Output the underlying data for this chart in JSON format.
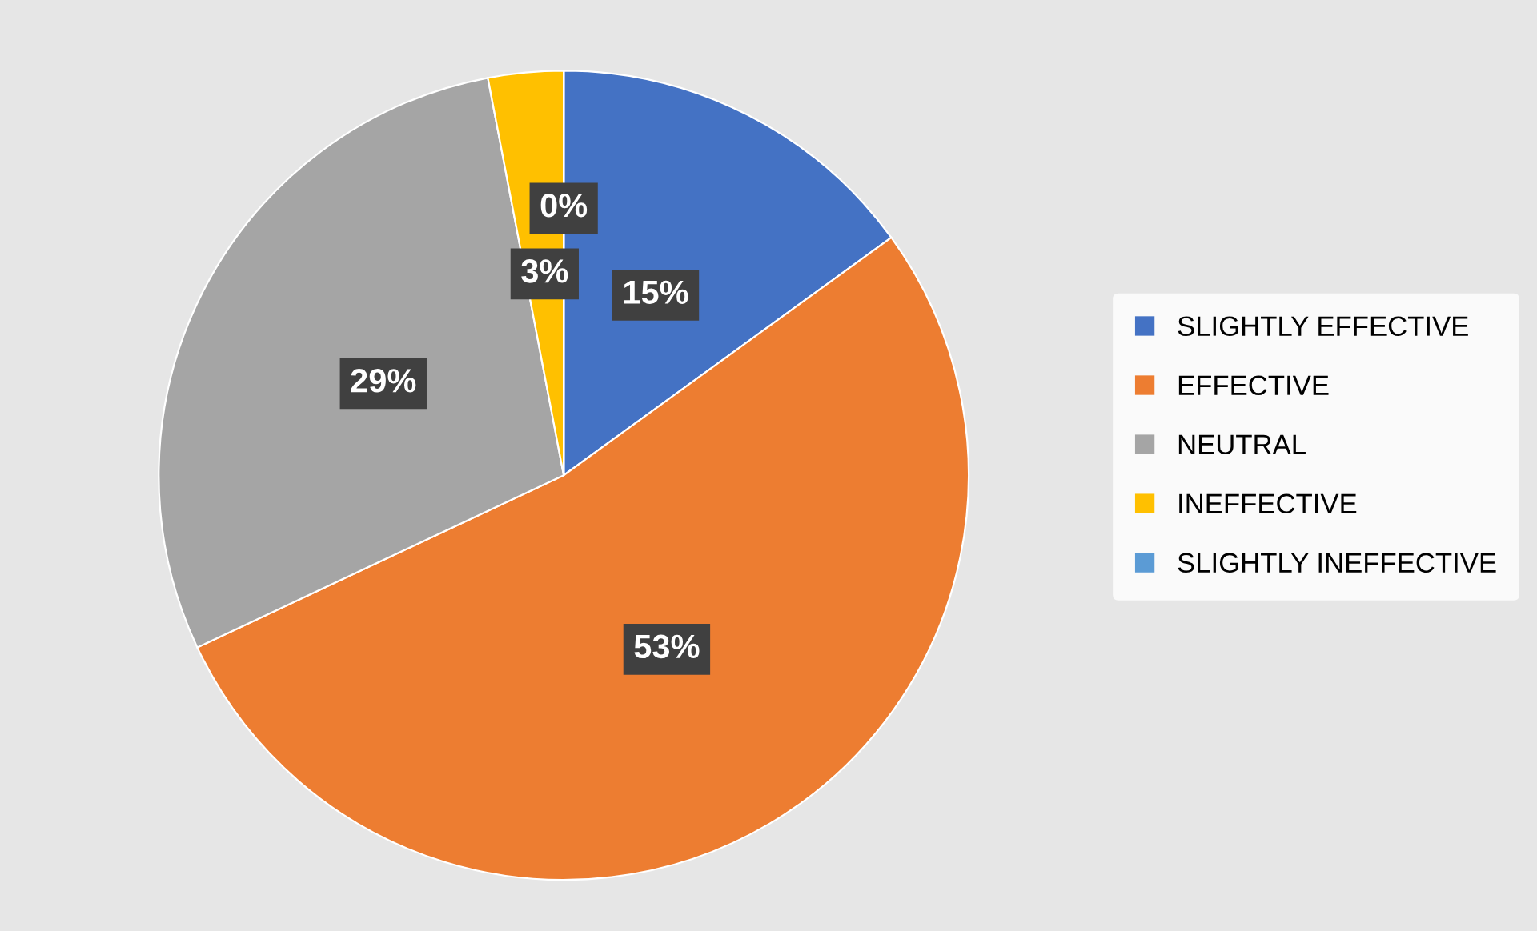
{
  "chart_data": {
    "type": "pie",
    "categories": [
      "SLIGHTLY EFFECTIVE",
      "EFFECTIVE",
      "NEUTRAL",
      "INEFFECTIVE",
      "SLIGHTLY INEFFECTIVE"
    ],
    "values": [
      15,
      53,
      29,
      3,
      0
    ],
    "colors": [
      "#4472c4",
      "#ed7d31",
      "#a5a5a5",
      "#ffc000",
      "#5b9bd5"
    ],
    "value_labels": [
      "15%",
      "53%",
      "29%",
      "3%",
      "0%"
    ],
    "legend": "right"
  }
}
